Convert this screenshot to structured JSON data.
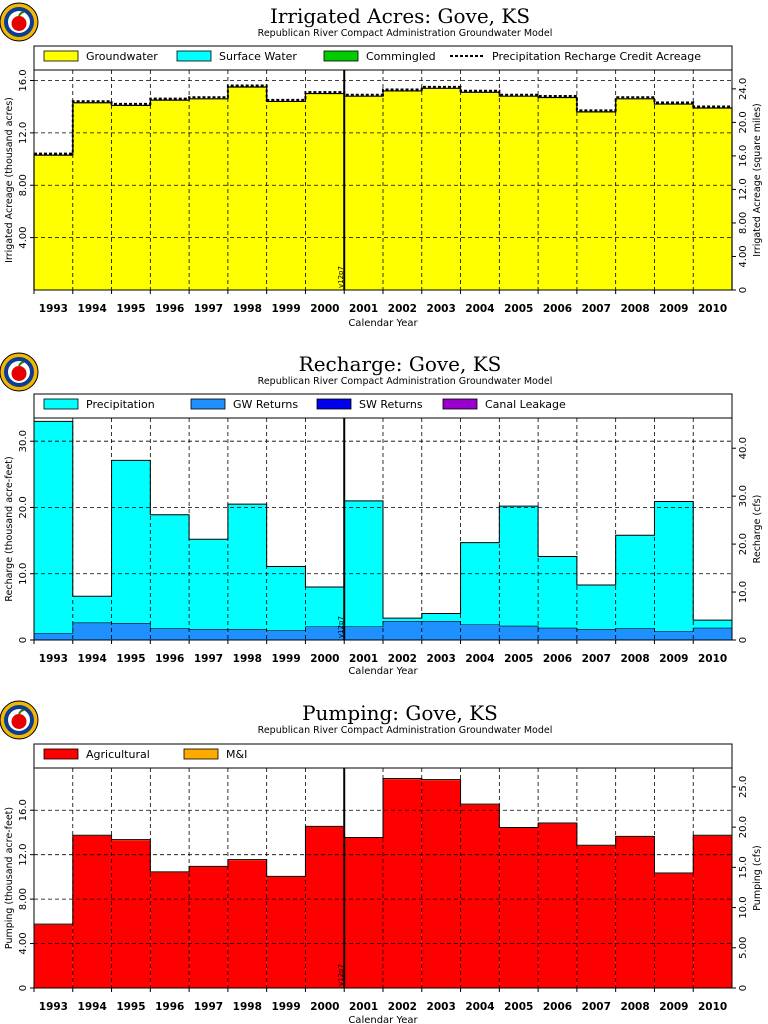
{
  "colors": {
    "groundwater": "#ffff00",
    "surface_water": "#00ffff",
    "commingled": "#00cc00",
    "precipitation": "#00ffff",
    "gw_returns": "#1e90ff",
    "sw_returns": "#0000ee",
    "canal_leakage": "#9900cc",
    "agricultural": "#ff0000",
    "mi": "#ffaa00",
    "logo_ring": "#0b3d91",
    "logo_gold": "#f2b705",
    "logo_apple": "#e60000"
  },
  "logo_icon": "apple-seal-icon",
  "chart_data": [
    {
      "type": "bar",
      "title": "Irrigated Acres: Gove, KS",
      "subtitle": "Republican River Compact Administration Groundwater Model",
      "xlabel": "Calendar Year",
      "ylabel": "Irrigated Acreage (thousand acres)",
      "ylabel_right": "Irrigated Acreage (square miles)",
      "categories": [
        "1993",
        "1994",
        "1995",
        "1996",
        "1997",
        "1998",
        "1999",
        "2000",
        "2001",
        "2002",
        "2003",
        "2004",
        "2005",
        "2006",
        "2007",
        "2008",
        "2009",
        "2010"
      ],
      "ylim": [
        0,
        16.8
      ],
      "yticks": [
        "4.00",
        "8.00",
        "12.0",
        "16.0"
      ],
      "ylim_right": [
        0,
        26.25
      ],
      "yticks_right": [
        "0",
        "4.00",
        "8.00",
        "12.0",
        "16.0",
        "20.0",
        "24.0"
      ],
      "grid": true,
      "legend_placement": "top",
      "vline": {
        "label": "v12p7",
        "after_category": "2000"
      },
      "series": [
        {
          "name": "Groundwater",
          "color_key": "groundwater",
          "kind": "bar",
          "values": [
            10.3,
            14.3,
            14.1,
            14.5,
            14.6,
            15.5,
            14.4,
            15.0,
            14.8,
            15.2,
            15.4,
            15.1,
            14.8,
            14.7,
            13.6,
            14.6,
            14.2,
            13.9
          ]
        },
        {
          "name": "Surface Water",
          "color_key": "surface_water",
          "kind": "bar",
          "values": [
            0,
            0,
            0,
            0,
            0,
            0,
            0,
            0,
            0,
            0,
            0,
            0,
            0,
            0,
            0,
            0,
            0,
            0
          ]
        },
        {
          "name": "Commingled",
          "color_key": "commingled",
          "kind": "bar",
          "values": [
            0,
            0,
            0,
            0,
            0,
            0,
            0,
            0,
            0,
            0,
            0,
            0,
            0,
            0,
            0,
            0,
            0,
            0
          ]
        },
        {
          "name": "Precipitation Recharge Credit Acreage",
          "color_key": "none",
          "kind": "dashed-step",
          "values": [
            10.3,
            14.3,
            14.1,
            14.5,
            14.6,
            15.5,
            14.4,
            15.0,
            14.8,
            15.2,
            15.4,
            15.1,
            14.8,
            14.7,
            13.6,
            14.6,
            14.2,
            13.9
          ]
        }
      ]
    },
    {
      "type": "bar",
      "title": "Recharge: Gove, KS",
      "subtitle": "Republican River Compact Administration Groundwater Model",
      "xlabel": "Calendar Year",
      "ylabel": "Recharge (thousand acre-feet)",
      "ylabel_right": "Recharge (cfs)",
      "categories": [
        "1993",
        "1994",
        "1995",
        "1996",
        "1997",
        "1998",
        "1999",
        "2000",
        "2001",
        "2002",
        "2003",
        "2004",
        "2005",
        "2006",
        "2007",
        "2008",
        "2009",
        "2010"
      ],
      "ylim": [
        0,
        33.5
      ],
      "yticks": [
        "0",
        "10.0",
        "20.0",
        "30.0"
      ],
      "ylim_right": [
        0,
        46.3
      ],
      "yticks_right": [
        "0",
        "10.0",
        "20.0",
        "30.0",
        "40.0"
      ],
      "grid": true,
      "legend_placement": "top",
      "vline": {
        "label": "v12p7",
        "after_category": "2000"
      },
      "stacked": true,
      "series": [
        {
          "name": "GW Returns",
          "color_key": "gw_returns",
          "kind": "bar",
          "values": [
            1.0,
            2.6,
            2.5,
            1.7,
            1.6,
            1.6,
            1.4,
            2.0,
            2.0,
            2.8,
            2.8,
            2.3,
            2.1,
            1.8,
            1.6,
            1.7,
            1.3,
            1.8
          ]
        },
        {
          "name": "SW Returns",
          "color_key": "sw_returns",
          "kind": "bar",
          "values": [
            0,
            0,
            0,
            0,
            0,
            0,
            0,
            0,
            0,
            0,
            0,
            0,
            0,
            0,
            0,
            0,
            0,
            0
          ]
        },
        {
          "name": "Canal Leakage",
          "color_key": "canal_leakage",
          "kind": "bar",
          "values": [
            0,
            0,
            0,
            0,
            0,
            0,
            0,
            0,
            0,
            0,
            0,
            0,
            0,
            0,
            0,
            0,
            0,
            0
          ]
        },
        {
          "name": "Precipitation",
          "color_key": "precipitation",
          "kind": "bar",
          "values": [
            32.0,
            4.0,
            24.6,
            17.2,
            13.6,
            18.9,
            9.7,
            6.0,
            19.0,
            0.5,
            1.2,
            12.4,
            18.1,
            10.8,
            6.7,
            14.1,
            19.6,
            1.2
          ]
        }
      ],
      "legend_order": [
        "Precipitation",
        "GW Returns",
        "SW Returns",
        "Canal Leakage"
      ]
    },
    {
      "type": "bar",
      "title": "Pumping: Gove, KS",
      "subtitle": "Republican River Compact Administration Groundwater Model",
      "xlabel": "Calendar Year",
      "ylabel": "Pumping (thousand acre-feet)",
      "ylabel_right": "Pumping (cfs)",
      "categories": [
        "1993",
        "1994",
        "1995",
        "1996",
        "1997",
        "1998",
        "1999",
        "2000",
        "2001",
        "2002",
        "2003",
        "2004",
        "2005",
        "2006",
        "2007",
        "2008",
        "2009",
        "2010"
      ],
      "ylim": [
        0,
        19.8
      ],
      "yticks": [
        "0",
        "4.00",
        "8.00",
        "12.0",
        "16.0"
      ],
      "ylim_right": [
        0,
        27.35
      ],
      "yticks_right": [
        "0",
        "5.00",
        "10.0",
        "15.0",
        "20.0",
        "25.0"
      ],
      "grid": true,
      "legend_placement": "top",
      "vline": {
        "label": "v12p7",
        "after_category": "2000"
      },
      "stacked": true,
      "series": [
        {
          "name": "Agricultural",
          "color_key": "agricultural",
          "kind": "bar",
          "values": [
            5.7,
            13.7,
            13.3,
            10.4,
            10.9,
            11.5,
            10.0,
            14.5,
            13.5,
            18.8,
            18.7,
            16.5,
            14.4,
            14.8,
            12.8,
            13.6,
            10.3,
            13.7
          ]
        },
        {
          "name": "M&I",
          "color_key": "mi",
          "kind": "bar",
          "values": [
            0.05,
            0.05,
            0.05,
            0.05,
            0.05,
            0.05,
            0.05,
            0.05,
            0.05,
            0.05,
            0.05,
            0.05,
            0.05,
            0.05,
            0.05,
            0.05,
            0.05,
            0.05
          ]
        }
      ]
    }
  ]
}
